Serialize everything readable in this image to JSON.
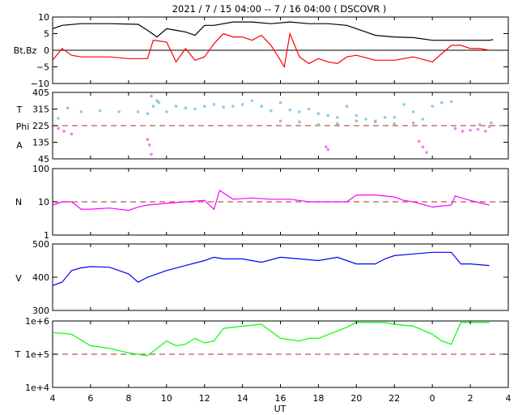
{
  "title": "2021 /  7 / 15  04:00 --  7 / 16   04:00 ( DSCOVR )",
  "xlabel": "UT",
  "colors": {
    "bt": "#000000",
    "bz": "#ff0000",
    "temp_angle": "#87ceeb",
    "phi": "#ee82ee",
    "phi_grey": "#b4b4b4",
    "density": "#ff00ff",
    "speed": "#0000ff",
    "temperature": "#00ff00",
    "ref_line": "#b05a5a"
  },
  "chart_data": [
    {
      "type": "line",
      "panel": "magnetic_field",
      "ylabel": "Bt,Bz",
      "ylim": [
        -10,
        10
      ],
      "yticks": [
        "10",
        "5",
        "0",
        "−5",
        "−10"
      ],
      "xlim": [
        4,
        28
      ],
      "xticks": [
        "4",
        "6",
        "8",
        "10",
        "12",
        "14",
        "16",
        "18",
        "20",
        "22",
        "0",
        "2",
        "4"
      ],
      "series": [
        {
          "key": "bt",
          "x": [
            4.0,
            4.5,
            5.5,
            7.0,
            8.5,
            9.0,
            9.5,
            10.0,
            10.5,
            11.0,
            11.5,
            12.0,
            12.5,
            13.5,
            14.5,
            15.5,
            16.5,
            17.5,
            18.5,
            19.5,
            20.0,
            20.5,
            21.0,
            22.0,
            23.0,
            24.0,
            25.0,
            26.0,
            27.0,
            27.2
          ],
          "y": [
            6.5,
            7.5,
            8.0,
            8.0,
            7.8,
            6.0,
            4.0,
            6.5,
            6.0,
            5.5,
            4.5,
            7.5,
            7.5,
            8.5,
            8.5,
            8.0,
            8.5,
            8.0,
            8.0,
            7.5,
            6.5,
            5.5,
            4.5,
            4.0,
            3.8,
            3.0,
            3.0,
            3.0,
            3.0,
            3.2
          ]
        },
        {
          "key": "bz",
          "x": [
            4.0,
            4.5,
            5.0,
            5.5,
            6.0,
            7.0,
            8.0,
            9.0,
            9.3,
            10.0,
            10.5,
            11.0,
            11.5,
            12.0,
            12.5,
            13.0,
            13.5,
            14.0,
            14.5,
            15.0,
            15.5,
            16.0,
            16.2,
            16.5,
            17.0,
            17.5,
            18.0,
            18.5,
            19.0,
            19.5,
            20.0,
            21.0,
            22.0,
            22.5,
            23.0,
            24.0,
            25.0,
            25.5,
            26.0,
            26.5,
            27.0
          ],
          "y": [
            -3.0,
            0.5,
            -1.5,
            -2.0,
            -2.0,
            -2.0,
            -2.5,
            -2.5,
            3.0,
            2.5,
            -3.5,
            0.5,
            -3.0,
            -2.0,
            2.0,
            5.0,
            4.0,
            4.0,
            3.0,
            4.5,
            1.5,
            -3.0,
            -5.0,
            5.0,
            -2.0,
            -4.0,
            -2.5,
            -3.5,
            -4.0,
            -2.0,
            -1.5,
            -3.0,
            -3.0,
            -2.5,
            -2.0,
            -3.5,
            1.5,
            1.5,
            0.5,
            0.5,
            0.0
          ]
        }
      ]
    },
    {
      "type": "scatter",
      "panel": "angles",
      "ylabel_lines": [
        "T",
        "Phi",
        "A"
      ],
      "ylim": [
        45,
        405
      ],
      "yticks": [
        "405",
        "315",
        "225",
        "135",
        "45"
      ],
      "ref_line": 225,
      "series": [
        {
          "key": "temp_angle",
          "x": [
            4.3,
            4.8,
            5.5,
            6.5,
            7.5,
            8.5,
            9.0,
            9.3,
            9.6,
            10.0,
            10.5,
            11.0,
            11.5,
            12.0,
            12.5,
            13.0,
            13.5,
            14.0,
            14.5,
            15.0,
            15.5,
            16.0,
            16.5,
            17.0,
            17.5,
            18.0,
            18.5,
            19.0,
            19.5,
            20.0,
            20.5,
            21.0,
            21.5,
            22.0,
            22.5,
            23.0,
            23.5,
            24.0,
            24.5,
            25.0
          ],
          "y": [
            265,
            320,
            300,
            305,
            300,
            300,
            290,
            330,
            350,
            300,
            330,
            320,
            315,
            330,
            340,
            325,
            330,
            340,
            360,
            330,
            305,
            350,
            310,
            300,
            315,
            290,
            280,
            270,
            330,
            280,
            260,
            250,
            270,
            270,
            340,
            300,
            260,
            330,
            350,
            355
          ]
        },
        {
          "key": "phi",
          "x": [
            4.3,
            4.6,
            5.0,
            9.0,
            9.1,
            9.2,
            18.4,
            18.5,
            23.3,
            23.5,
            23.7,
            25.2,
            25.6,
            26.0,
            26.4,
            26.8,
            27.0
          ],
          "y": [
            210,
            195,
            180,
            150,
            120,
            70,
            110,
            95,
            140,
            110,
            80,
            210,
            195,
            200,
            205,
            195,
            220
          ]
        },
        {
          "key": "phi_grey",
          "x": [
            9.2,
            9.5,
            16.0,
            17.0,
            18.0,
            19.0,
            20.0,
            21.0,
            22.0,
            23.0,
            26.5,
            27.1
          ],
          "y": [
            385,
            360,
            250,
            245,
            230,
            235,
            250,
            245,
            235,
            240,
            230,
            240
          ]
        }
      ]
    },
    {
      "type": "line",
      "panel": "density",
      "ylabel": "N",
      "ylim_log": [
        1,
        100
      ],
      "yticks": [
        "100",
        "10",
        "1"
      ],
      "ref_line": 10,
      "series": [
        {
          "key": "density",
          "x": [
            4.0,
            4.5,
            5.0,
            5.5,
            6.0,
            7.0,
            8.0,
            8.5,
            9.0,
            10.0,
            11.0,
            12.0,
            12.5,
            12.8,
            13.5,
            14.5,
            15.5,
            16.5,
            17.5,
            18.5,
            19.5,
            20.0,
            21.0,
            22.0,
            22.5,
            23.0,
            24.0,
            25.0,
            25.2,
            26.0,
            27.0
          ],
          "y": [
            8,
            10,
            10,
            6,
            6,
            6.5,
            5.5,
            7,
            8,
            9,
            10,
            11,
            6,
            22,
            12,
            13,
            12,
            12,
            10,
            10,
            10,
            16,
            16,
            14,
            11,
            10,
            7,
            8,
            15,
            11,
            8
          ]
        }
      ]
    },
    {
      "type": "line",
      "panel": "speed",
      "ylabel": "V",
      "ylim": [
        300,
        500
      ],
      "yticks": [
        "500",
        "400",
        "300"
      ],
      "series": [
        {
          "key": "speed",
          "x": [
            4.0,
            4.5,
            5.0,
            5.5,
            6.0,
            7.0,
            8.0,
            8.5,
            9.0,
            10.0,
            11.0,
            12.0,
            12.5,
            13.0,
            14.0,
            14.5,
            15.0,
            16.0,
            17.0,
            18.0,
            19.0,
            20.0,
            21.0,
            21.5,
            22.0,
            23.0,
            24.0,
            25.0,
            25.5,
            26.0,
            27.0
          ],
          "y": [
            375,
            385,
            420,
            428,
            432,
            430,
            410,
            385,
            400,
            420,
            435,
            450,
            460,
            455,
            455,
            450,
            445,
            460,
            455,
            450,
            460,
            440,
            440,
            455,
            465,
            470,
            475,
            475,
            440,
            440,
            435
          ]
        }
      ]
    },
    {
      "type": "line",
      "panel": "temperature",
      "ylabel": "T",
      "ylim_log": [
        10000,
        1000000
      ],
      "yticks": [
        "1e+6",
        "1e+5",
        "1e+4"
      ],
      "ref_line": 100000,
      "series": [
        {
          "key": "temperature",
          "x": [
            4.0,
            5.0,
            6.0,
            7.0,
            8.0,
            9.0,
            10.0,
            10.5,
            11.0,
            11.5,
            12.0,
            12.5,
            13.0,
            14.0,
            15.0,
            16.0,
            17.0,
            17.5,
            18.0,
            19.0,
            19.5,
            20.0,
            20.5,
            21.0,
            21.5,
            22.0,
            23.0,
            24.0,
            24.5,
            25.0,
            25.5,
            26.0,
            26.5,
            27.0
          ],
          "y": [
            450000,
            400000,
            180000,
            150000,
            110000,
            90000,
            250000,
            180000,
            200000,
            300000,
            220000,
            250000,
            600000,
            700000,
            800000,
            300000,
            250000,
            300000,
            300000,
            500000,
            650000,
            900000,
            900000,
            900000,
            900000,
            800000,
            700000,
            400000,
            250000,
            200000,
            900000,
            900000,
            900000,
            900000
          ]
        }
      ]
    }
  ]
}
